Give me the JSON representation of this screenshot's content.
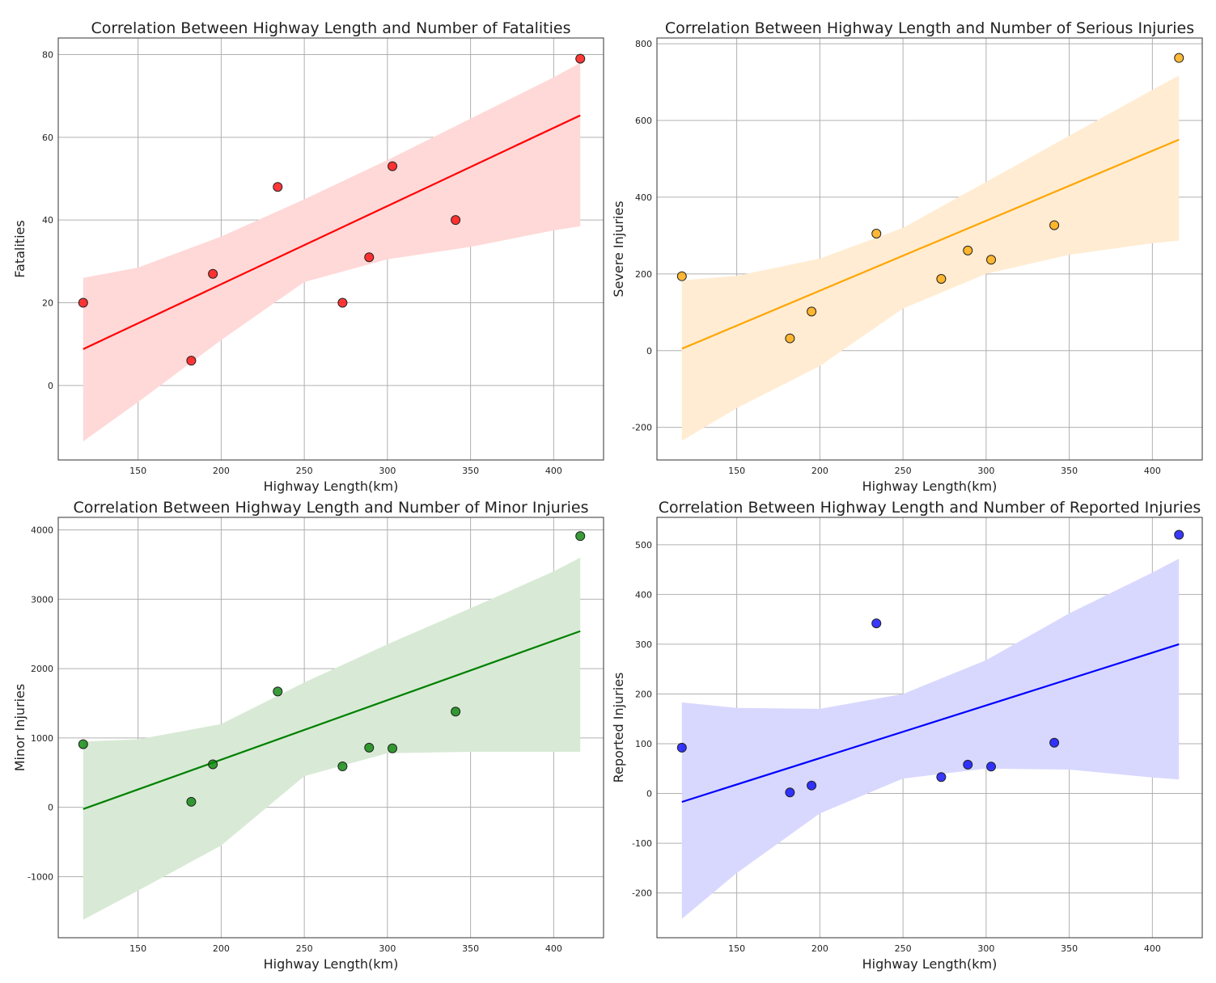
{
  "chart_data": [
    {
      "type": "scatter",
      "title": "Correlation Between Highway Length and Number of Fatalities",
      "xlabel": "Highway Length(km)",
      "ylabel": "Fatalities",
      "xlim": [
        102,
        430
      ],
      "ylim": [
        -18,
        84
      ],
      "xticks": [
        150,
        200,
        250,
        300,
        350,
        400
      ],
      "yticks": [
        0,
        20,
        40,
        60,
        80
      ],
      "grid": true,
      "color": "#ff0000",
      "band_color": "#ffd8d8",
      "x": [
        117,
        182,
        195,
        234,
        273,
        289,
        303,
        341,
        416
      ],
      "y": [
        20,
        6,
        27,
        48,
        20,
        31,
        53,
        40,
        79
      ],
      "regression": {
        "x": [
          117,
          416
        ],
        "y": [
          8.8,
          65.3
        ]
      },
      "ci": {
        "x": [
          117,
          150,
          200,
          250,
          300,
          350,
          400,
          416
        ],
        "lower": [
          -13.5,
          -4,
          11,
          25,
          30.5,
          33.5,
          37.5,
          38.5
        ],
        "upper": [
          26,
          28.5,
          36,
          45,
          54.5,
          64.5,
          74.5,
          78
        ]
      }
    },
    {
      "type": "scatter",
      "title": "Correlation Between Highway Length and Number of Serious Injuries",
      "xlabel": "Highway Length(km)",
      "ylabel": "Severe Injuries",
      "xlim": [
        102,
        430
      ],
      "ylim": [
        -285,
        815
      ],
      "xticks": [
        150,
        200,
        250,
        300,
        350,
        400
      ],
      "yticks": [
        -200,
        0,
        200,
        400,
        600,
        800
      ],
      "grid": true,
      "color": "#ffa500",
      "band_color": "#ffecd2",
      "x": [
        117,
        182,
        195,
        234,
        273,
        289,
        303,
        341,
        416
      ],
      "y": [
        194,
        32,
        102,
        305,
        187,
        261,
        237,
        327,
        763
      ],
      "regression": {
        "x": [
          117,
          416
        ],
        "y": [
          5,
          550
        ]
      },
      "ci": {
        "x": [
          117,
          150,
          200,
          250,
          300,
          350,
          400,
          416
        ],
        "lower": [
          -235,
          -150,
          -40,
          110,
          200,
          250,
          280,
          287
        ],
        "upper": [
          183,
          195,
          240,
          320,
          440,
          560,
          680,
          717
        ]
      }
    },
    {
      "type": "scatter",
      "title": "Correlation Between Highway Length and Number of Minor Injuries",
      "xlabel": "Highway Length(km)",
      "ylabel": "Minor Injuries",
      "xlim": [
        102,
        430
      ],
      "ylim": [
        -1880,
        4180
      ],
      "xticks": [
        150,
        200,
        250,
        300,
        350,
        400
      ],
      "yticks": [
        -1000,
        0,
        1000,
        2000,
        3000,
        4000
      ],
      "grid": true,
      "color": "#008000",
      "band_color": "#d8ead5",
      "x": [
        117,
        182,
        195,
        234,
        273,
        289,
        303,
        341,
        416
      ],
      "y": [
        910,
        80,
        620,
        1670,
        590,
        860,
        850,
        1380,
        3910
      ],
      "regression": {
        "x": [
          117,
          416
        ],
        "y": [
          -25,
          2540
        ]
      },
      "ci": {
        "x": [
          117,
          150,
          200,
          250,
          300,
          350,
          400,
          416
        ],
        "lower": [
          -1620,
          -1200,
          -550,
          450,
          780,
          800,
          800,
          800
        ],
        "upper": [
          950,
          980,
          1200,
          1800,
          2350,
          2870,
          3400,
          3600
        ]
      }
    },
    {
      "type": "scatter",
      "title": "Correlation Between Highway Length and Number of Reported Injuries",
      "xlabel": "Highway Length(km)",
      "ylabel": "Reported Injuries",
      "xlim": [
        102,
        430
      ],
      "ylim": [
        -290,
        555
      ],
      "xticks": [
        150,
        200,
        250,
        300,
        350,
        400
      ],
      "yticks": [
        -200,
        -100,
        0,
        100,
        200,
        300,
        400,
        500
      ],
      "grid": true,
      "color": "#0000ff",
      "band_color": "#d8d8ff",
      "x": [
        117,
        182,
        195,
        234,
        273,
        289,
        303,
        341,
        416
      ],
      "y": [
        92,
        2,
        16,
        342,
        33,
        58,
        54,
        102,
        520
      ],
      "regression": {
        "x": [
          117,
          416
        ],
        "y": [
          -17,
          300
        ]
      },
      "ci": {
        "x": [
          117,
          150,
          200,
          250,
          300,
          350,
          400,
          416
        ],
        "lower": [
          -252,
          -160,
          -40,
          30,
          50,
          48,
          32,
          28
        ],
        "upper": [
          183,
          172,
          170,
          200,
          268,
          362,
          444,
          472
        ]
      }
    }
  ]
}
